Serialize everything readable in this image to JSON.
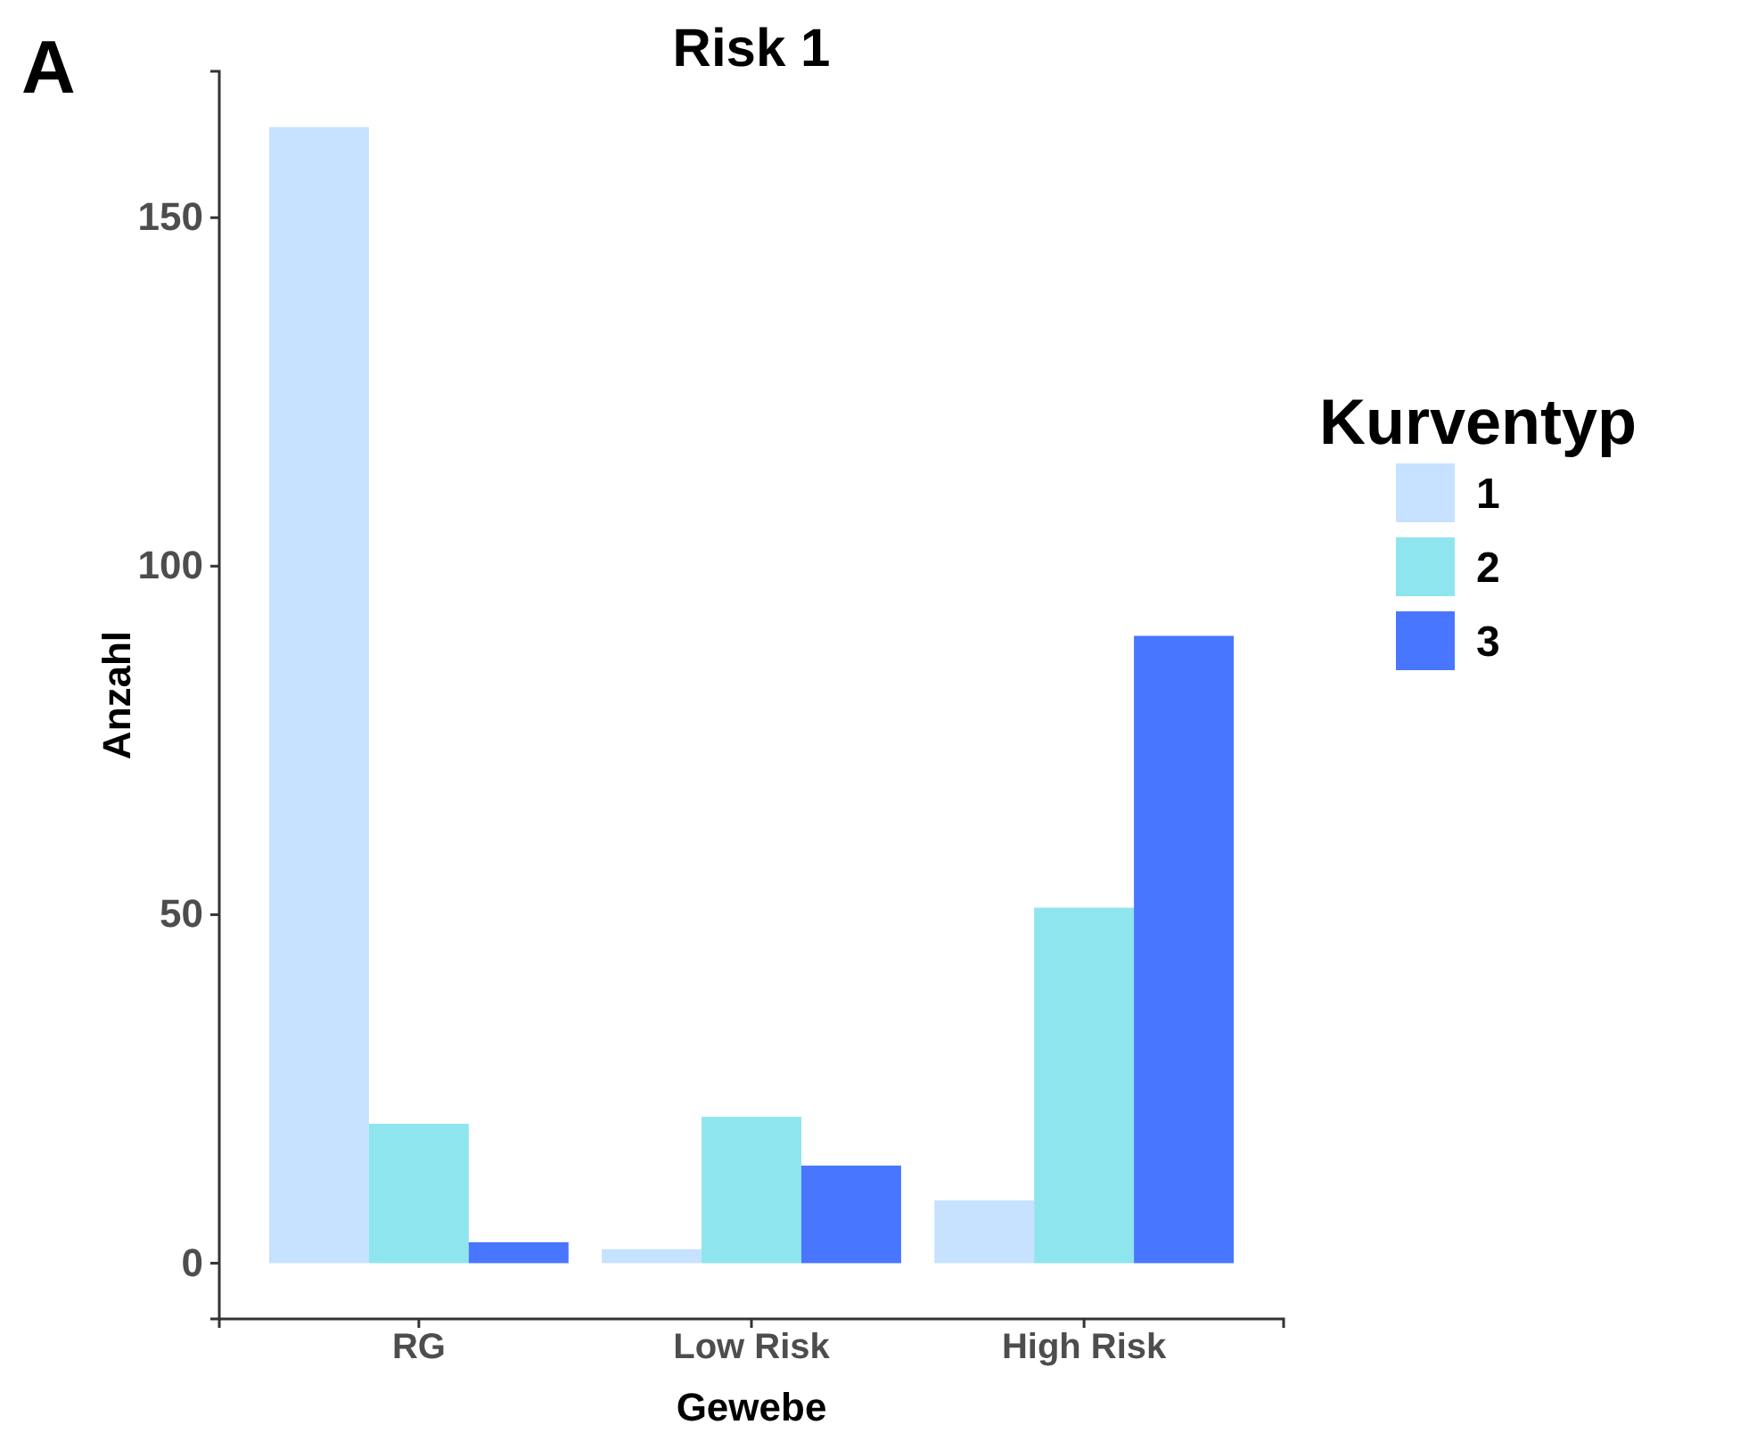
{
  "chart_data": {
    "type": "bar",
    "title": "Risk 1",
    "xlabel": "Gewebe",
    "ylabel": "Anzahl",
    "legend_title": "Kurventyp",
    "annotations": [
      "A"
    ],
    "categories": [
      "RG",
      "Low Risk",
      "High Risk"
    ],
    "series": [
      {
        "name": "1",
        "color": "#c6e2ff",
        "values": [
          163,
          2,
          9
        ]
      },
      {
        "name": "2",
        "color": "#8ee5ee",
        "values": [
          20,
          21,
          51
        ]
      },
      {
        "name": "3",
        "color": "#4876ff",
        "values": [
          3,
          14,
          90
        ]
      }
    ],
    "ylim": [
      -8,
      171
    ],
    "yticks": [
      0,
      50,
      100,
      150
    ],
    "grid": false,
    "legend": "right"
  }
}
